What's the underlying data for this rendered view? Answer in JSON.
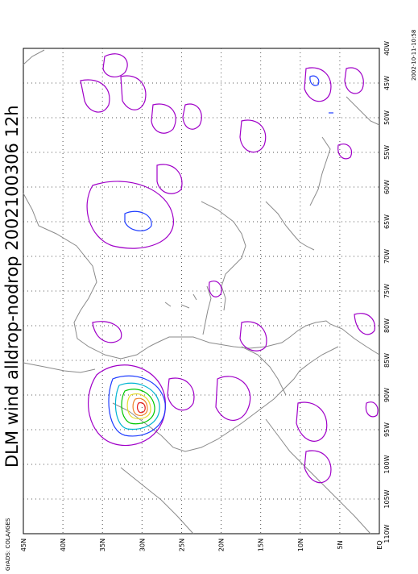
{
  "title": "DLM wind alldrop-nodrop 2002100306 12h",
  "timestamp": "2002-10-11-10:58",
  "credit": "GrADS: COLA/IGES",
  "map": {
    "lon_range": [
      -110,
      -40
    ],
    "lat_range": [
      0,
      45
    ],
    "lon_ticks": [
      {
        "value": -40,
        "label": "40W"
      },
      {
        "value": -45,
        "label": "45W"
      },
      {
        "value": -50,
        "label": "50W"
      },
      {
        "value": -55,
        "label": "55W"
      },
      {
        "value": -60,
        "label": "60W"
      },
      {
        "value": -65,
        "label": "65W"
      },
      {
        "value": -70,
        "label": "70W"
      },
      {
        "value": -75,
        "label": "75W"
      },
      {
        "value": -80,
        "label": "80W"
      },
      {
        "value": -85,
        "label": "85W"
      },
      {
        "value": -90,
        "label": "90W"
      },
      {
        "value": -95,
        "label": "95W"
      },
      {
        "value": -100,
        "label": "100W"
      },
      {
        "value": -105,
        "label": "105W"
      },
      {
        "value": -110,
        "label": "110W"
      }
    ],
    "lat_ticks": [
      {
        "value": 45,
        "label": "45N"
      },
      {
        "value": 40,
        "label": "40N"
      },
      {
        "value": 35,
        "label": "35N"
      },
      {
        "value": 30,
        "label": "30N"
      },
      {
        "value": 25,
        "label": "25N"
      },
      {
        "value": 20,
        "label": "20N"
      },
      {
        "value": 15,
        "label": "15N"
      },
      {
        "value": 10,
        "label": "10N"
      },
      {
        "value": 5,
        "label": "5N"
      },
      {
        "value": 0,
        "label": "EQ"
      }
    ],
    "grid": true,
    "colors": {
      "coast": "#8a8a8a",
      "magenta": "#a000c8",
      "blue": "#1e3cff",
      "cyan": "#00b4d2",
      "green": "#00c800",
      "yellow": "#e6dc32",
      "orange": "#f08228",
      "red": "#e61e1e"
    }
  }
}
